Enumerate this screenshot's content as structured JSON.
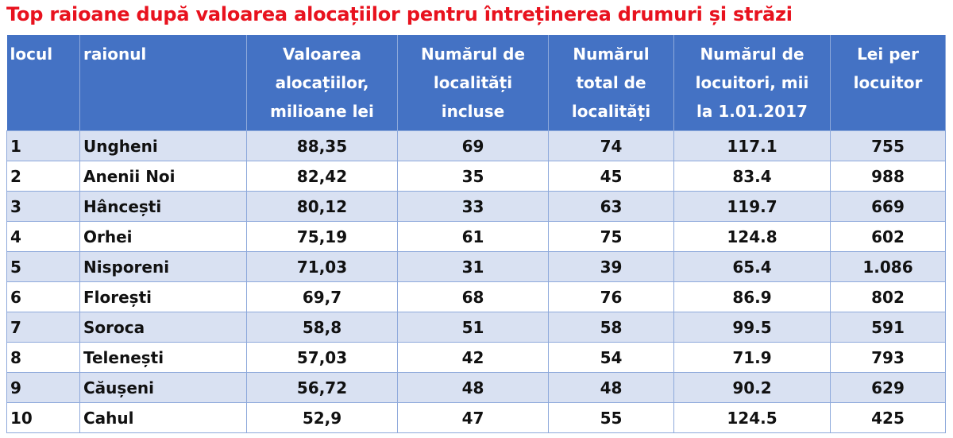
{
  "title": "Top raioane după valoarea alocațiilor pentru întreținerea drumuri și străzi",
  "table": {
    "header": [
      "locul",
      "raionul",
      "Valoarea\nalocațiilor,\nmilioane lei",
      "Numărul de\nlocalități\nincluse",
      "Numărul\ntotal de\nlocalități",
      "Numărul de\nlocuitori, mii\nla 1.01.2017",
      "Lei per\nlocuitor"
    ],
    "rows": [
      [
        "1",
        "Ungheni",
        "88,35",
        "69",
        "74",
        "117.1",
        "755"
      ],
      [
        "2",
        "Anenii Noi",
        "82,42",
        "35",
        "45",
        "83.4",
        "988"
      ],
      [
        "3",
        "Hâncești",
        "80,12",
        "33",
        "63",
        "119.7",
        "669"
      ],
      [
        "4",
        "Orhei",
        "75,19",
        "61",
        "75",
        "124.8",
        "602"
      ],
      [
        "5",
        "Nisporeni",
        "71,03",
        "31",
        "39",
        "65.4",
        "1.086"
      ],
      [
        "6",
        "Florești",
        "69,7",
        "68",
        "76",
        "86.9",
        "802"
      ],
      [
        "7",
        "Soroca",
        "58,8",
        "51",
        "58",
        "99.5",
        "591"
      ],
      [
        "8",
        "Telenești",
        "57,03",
        "42",
        "54",
        "71.9",
        "793"
      ],
      [
        "9",
        "Căușeni",
        "56,72",
        "48",
        "48",
        "90.2",
        "629"
      ],
      [
        "10",
        "Cahul",
        "52,9",
        "47",
        "55",
        "124.5",
        "425"
      ]
    ]
  }
}
